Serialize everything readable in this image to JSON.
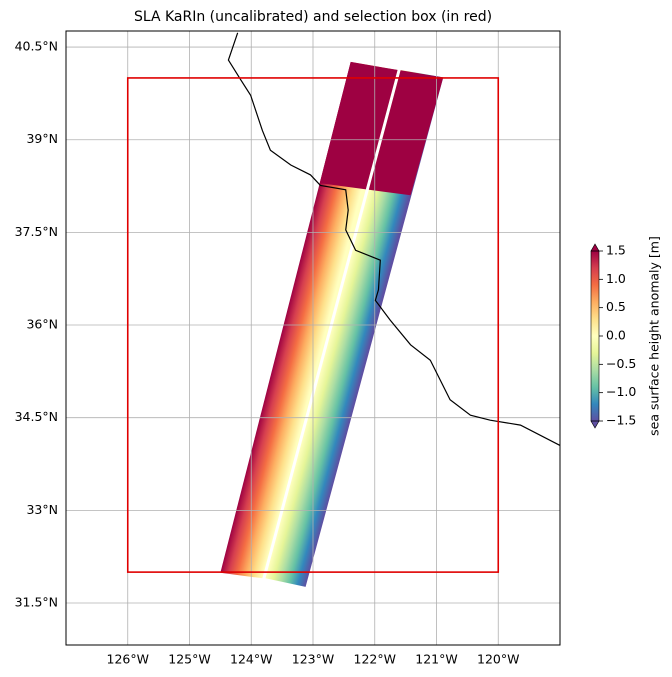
{
  "chart_data": {
    "type": "map",
    "title": "SLA KaRIn (uncalibrated) and selection box (in red)",
    "xlim": [
      -127,
      -119
    ],
    "ylim": [
      30.82,
      40.76
    ],
    "xticks": [
      {
        "value": -126,
        "label": "126°W"
      },
      {
        "value": -125,
        "label": "125°W"
      },
      {
        "value": -124,
        "label": "124°W"
      },
      {
        "value": -123,
        "label": "123°W"
      },
      {
        "value": -122,
        "label": "122°W"
      },
      {
        "value": -121,
        "label": "121°W"
      },
      {
        "value": -120,
        "label": "120°W"
      }
    ],
    "yticks": [
      {
        "value": 31.5,
        "label": "31.5°N"
      },
      {
        "value": 33,
        "label": "33°N"
      },
      {
        "value": 34.5,
        "label": "34.5°N"
      },
      {
        "value": 36,
        "label": "36°N"
      },
      {
        "value": 37.5,
        "label": "37.5°N"
      },
      {
        "value": 39,
        "label": "39°N"
      },
      {
        "value": 40.5,
        "label": "40.5°N"
      }
    ],
    "grid": true,
    "swaths": [
      {
        "polygon": [
          [
            -124.5,
            31.99
          ],
          [
            -123.82,
            31.9
          ],
          [
            -121.63,
            40.13
          ],
          [
            -122.39,
            40.26
          ]
        ],
        "colors": [
          "#9e0142",
          "#d53e4f",
          "#f46d43",
          "#fdae61",
          "#fee08b",
          "#ffffbf"
        ]
      },
      {
        "polygon": [
          [
            -123.77,
            31.9
          ],
          [
            -123.12,
            31.76
          ],
          [
            -120.89,
            40.01
          ],
          [
            -121.58,
            40.13
          ]
        ],
        "colors": [
          "#ffffbf",
          "#e6f598",
          "#abdda4",
          "#66c2a5",
          "#3288bd",
          "#5e4fa2"
        ]
      }
    ],
    "high_anomaly_region": {
      "polygon": [
        [
          -122.91,
          38.3
        ],
        [
          -121.42,
          38.1
        ],
        [
          -120.89,
          40.01
        ],
        [
          -122.39,
          40.26
        ]
      ],
      "color": "#9e0142"
    },
    "coastline": [
      [
        -124.22,
        40.73
      ],
      [
        -124.37,
        40.29
      ],
      [
        -124.17,
        39.97
      ],
      [
        -124.01,
        39.72
      ],
      [
        -123.82,
        39.15
      ],
      [
        -123.69,
        38.83
      ],
      [
        -123.36,
        38.59
      ],
      [
        -123.04,
        38.43
      ],
      [
        -122.88,
        38.26
      ],
      [
        -122.47,
        38.19
      ],
      [
        -122.43,
        37.86
      ],
      [
        -122.47,
        37.54
      ],
      [
        -122.31,
        37.21
      ],
      [
        -121.91,
        37.05
      ],
      [
        -121.94,
        36.57
      ],
      [
        -121.99,
        36.4
      ],
      [
        -121.75,
        36.08
      ],
      [
        -121.42,
        35.68
      ],
      [
        -121.1,
        35.43
      ],
      [
        -120.94,
        35.11
      ],
      [
        -120.78,
        34.79
      ],
      [
        -120.45,
        34.54
      ],
      [
        -120.13,
        34.46
      ],
      [
        -119.64,
        34.38
      ],
      [
        -119.0,
        34.05
      ]
    ],
    "selection_box": {
      "lon": [
        -126,
        -120
      ],
      "lat": [
        32,
        40
      ],
      "color": "#e00000"
    },
    "colorbar": {
      "label": "sea surface height anomaly [m]",
      "lim": [
        -1.5,
        1.5
      ],
      "ticks": [
        {
          "value": -1.5,
          "label": "−1.5"
        },
        {
          "value": -1,
          "label": "−1.0"
        },
        {
          "value": -0.5,
          "label": "−0.5"
        },
        {
          "value": 0,
          "label": "0.0"
        },
        {
          "value": 0.5,
          "label": "0.5"
        },
        {
          "value": 1,
          "label": "1.0"
        },
        {
          "value": 1.5,
          "label": "1.5"
        }
      ],
      "colors": [
        "#5e4fa2",
        "#3288bd",
        "#66c2a5",
        "#abdda4",
        "#e6f598",
        "#ffffbf",
        "#fee08b",
        "#fdae61",
        "#f46d43",
        "#d53e4f",
        "#9e0142"
      ]
    }
  }
}
